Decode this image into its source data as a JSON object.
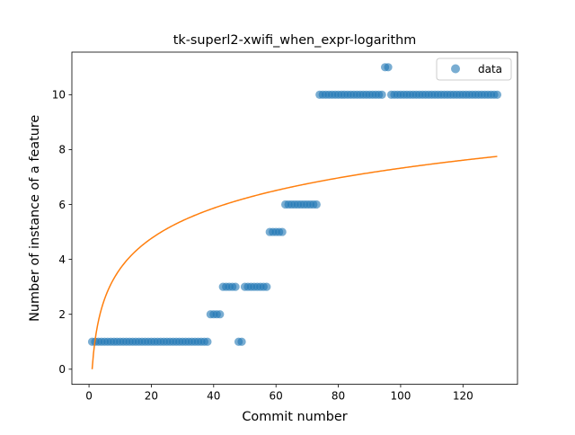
{
  "chart_data": {
    "type": "scatter",
    "title": "tk-superl2-xwifi_when_expr-logarithm",
    "xlabel": "Commit number",
    "ylabel": "Number of instance of a feature",
    "xlim": [
      -5.5,
      137.5
    ],
    "ylim": [
      -0.55,
      11.55
    ],
    "xticks": [
      0,
      20,
      40,
      60,
      80,
      100,
      120
    ],
    "yticks": [
      0,
      2,
      4,
      6,
      8,
      10
    ],
    "grid": false,
    "legend": {
      "position": "top-right",
      "entries": [
        "data"
      ]
    },
    "colors": {
      "data": "#1f77b4",
      "fit": "#ff7f0e"
    },
    "series": [
      {
        "name": "data",
        "kind": "scatter",
        "points": [
          [
            1,
            1
          ],
          [
            2,
            1
          ],
          [
            3,
            1
          ],
          [
            4,
            1
          ],
          [
            5,
            1
          ],
          [
            6,
            1
          ],
          [
            7,
            1
          ],
          [
            8,
            1
          ],
          [
            9,
            1
          ],
          [
            10,
            1
          ],
          [
            11,
            1
          ],
          [
            12,
            1
          ],
          [
            13,
            1
          ],
          [
            14,
            1
          ],
          [
            15,
            1
          ],
          [
            16,
            1
          ],
          [
            17,
            1
          ],
          [
            18,
            1
          ],
          [
            19,
            1
          ],
          [
            20,
            1
          ],
          [
            21,
            1
          ],
          [
            22,
            1
          ],
          [
            23,
            1
          ],
          [
            24,
            1
          ],
          [
            25,
            1
          ],
          [
            26,
            1
          ],
          [
            27,
            1
          ],
          [
            28,
            1
          ],
          [
            29,
            1
          ],
          [
            30,
            1
          ],
          [
            31,
            1
          ],
          [
            32,
            1
          ],
          [
            33,
            1
          ],
          [
            34,
            1
          ],
          [
            35,
            1
          ],
          [
            36,
            1
          ],
          [
            37,
            1
          ],
          [
            38,
            1
          ],
          [
            39,
            2
          ],
          [
            40,
            2
          ],
          [
            41,
            2
          ],
          [
            42,
            2
          ],
          [
            43,
            3
          ],
          [
            44,
            3
          ],
          [
            45,
            3
          ],
          [
            46,
            3
          ],
          [
            47,
            3
          ],
          [
            48,
            1
          ],
          [
            49,
            1
          ],
          [
            50,
            3
          ],
          [
            51,
            3
          ],
          [
            52,
            3
          ],
          [
            53,
            3
          ],
          [
            54,
            3
          ],
          [
            55,
            3
          ],
          [
            56,
            3
          ],
          [
            57,
            3
          ],
          [
            58,
            5
          ],
          [
            59,
            5
          ],
          [
            60,
            5
          ],
          [
            61,
            5
          ],
          [
            62,
            5
          ],
          [
            63,
            6
          ],
          [
            64,
            6
          ],
          [
            65,
            6
          ],
          [
            66,
            6
          ],
          [
            67,
            6
          ],
          [
            68,
            6
          ],
          [
            69,
            6
          ],
          [
            70,
            6
          ],
          [
            71,
            6
          ],
          [
            72,
            6
          ],
          [
            73,
            6
          ],
          [
            74,
            10
          ],
          [
            75,
            10
          ],
          [
            76,
            10
          ],
          [
            77,
            10
          ],
          [
            78,
            10
          ],
          [
            79,
            10
          ],
          [
            80,
            10
          ],
          [
            81,
            10
          ],
          [
            82,
            10
          ],
          [
            83,
            10
          ],
          [
            84,
            10
          ],
          [
            85,
            10
          ],
          [
            86,
            10
          ],
          [
            87,
            10
          ],
          [
            88,
            10
          ],
          [
            89,
            10
          ],
          [
            90,
            10
          ],
          [
            91,
            10
          ],
          [
            92,
            10
          ],
          [
            93,
            10
          ],
          [
            94,
            10
          ],
          [
            95,
            11
          ],
          [
            96,
            11
          ],
          [
            97,
            10
          ],
          [
            98,
            10
          ],
          [
            99,
            10
          ],
          [
            100,
            10
          ],
          [
            101,
            10
          ],
          [
            102,
            10
          ],
          [
            103,
            10
          ],
          [
            104,
            10
          ],
          [
            105,
            10
          ],
          [
            106,
            10
          ],
          [
            107,
            10
          ],
          [
            108,
            10
          ],
          [
            109,
            10
          ],
          [
            110,
            10
          ],
          [
            111,
            10
          ],
          [
            112,
            10
          ],
          [
            113,
            10
          ],
          [
            114,
            10
          ],
          [
            115,
            10
          ],
          [
            116,
            10
          ],
          [
            117,
            10
          ],
          [
            118,
            10
          ],
          [
            119,
            10
          ],
          [
            120,
            10
          ],
          [
            121,
            10
          ],
          [
            122,
            10
          ],
          [
            123,
            10
          ],
          [
            124,
            10
          ],
          [
            125,
            10
          ],
          [
            126,
            10
          ],
          [
            127,
            10
          ],
          [
            128,
            10
          ],
          [
            129,
            10
          ],
          [
            130,
            10
          ],
          [
            131,
            10
          ]
        ]
      },
      {
        "kind": "line",
        "equation": "y = 1.59 * ln(x)",
        "x_range": [
          1,
          131
        ]
      }
    ]
  }
}
